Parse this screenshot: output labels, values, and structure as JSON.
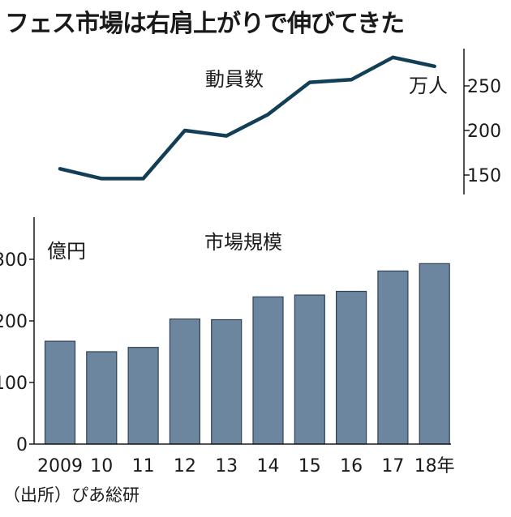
{
  "title": "フェス市場は右肩上がりで伸びてきた",
  "source": "（出所）ぴあ総研",
  "colors": {
    "line": "#123f55",
    "bar_fill": "#6c869f",
    "bar_stroke": "#2f4255",
    "axis": "#1a1a1a"
  },
  "chart_data": [
    {
      "type": "line",
      "title": "動員数",
      "unit": "万人",
      "categories": [
        "2009",
        "10",
        "11",
        "12",
        "13",
        "14",
        "15",
        "16",
        "17",
        "18年"
      ],
      "values": [
        157,
        146,
        146,
        200,
        194,
        218,
        254,
        257,
        282,
        272
      ],
      "yticks": [
        150,
        200,
        250
      ],
      "ylim": [
        130,
        300
      ],
      "grid": false
    },
    {
      "type": "bar",
      "title": "市場規模",
      "unit": "億円",
      "categories": [
        "2009",
        "10",
        "11",
        "12",
        "13",
        "14",
        "15",
        "16",
        "17",
        "18年"
      ],
      "values": [
        167,
        150,
        157,
        203,
        202,
        239,
        242,
        248,
        281,
        293
      ],
      "yticks": [
        0,
        100,
        200,
        300
      ],
      "ylim": [
        0,
        370
      ],
      "grid": false
    }
  ]
}
